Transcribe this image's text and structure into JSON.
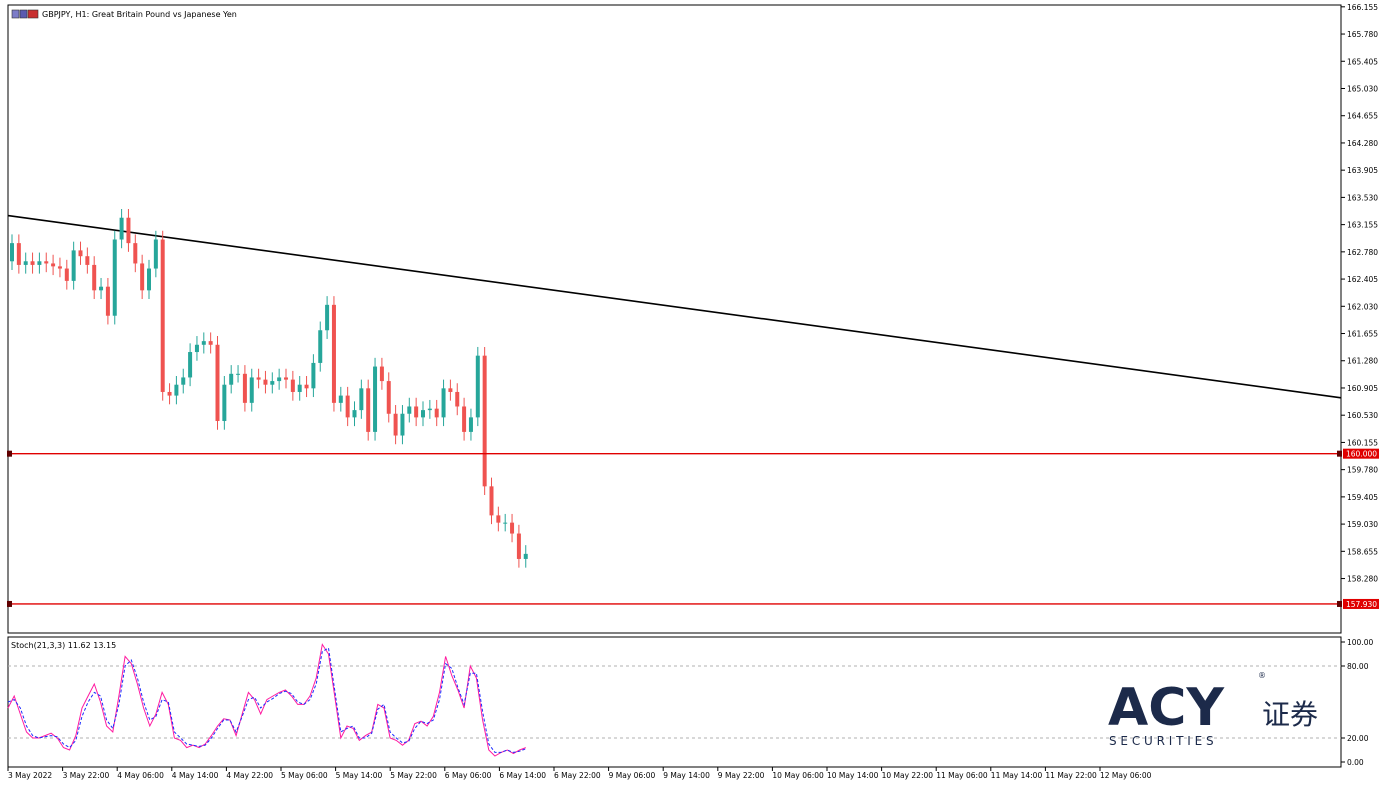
{
  "header": {
    "symbol_text": "GBPJPY, H1:  Great Britain Pound vs Japanese Yen"
  },
  "indicator": {
    "label": "Stoch(21,3,3) 11.62 13.15",
    "main_color": "#ff1aa0",
    "signal_color": "#1a2bff"
  },
  "logo": {
    "mark": "ACY",
    "chinese": "证券",
    "securities": "S E C U R I T I E S",
    "registered": "®",
    "color": "#1c2a4a"
  },
  "colors": {
    "bull": "#26a69a",
    "bear": "#ef5350",
    "trendline": "#000000",
    "hline": "#e00000",
    "hline_label_bg": "#e00000"
  },
  "chart_data": [
    {
      "type": "candlestick",
      "title": "GBPJPY, H1:  Great Britain Pound vs Japanese Yen",
      "ylim": [
        157.53,
        166.18
      ],
      "y_ticks": [
        "166.155",
        "165.780",
        "165.405",
        "165.030",
        "164.655",
        "164.280",
        "163.905",
        "163.530",
        "163.155",
        "162.780",
        "162.405",
        "162.030",
        "161.655",
        "161.280",
        "160.905",
        "160.530",
        "160.155",
        "159.780",
        "159.405",
        "159.030",
        "158.655",
        "158.280"
      ],
      "x_ticks": [
        "3 May 2022",
        "3 May 22:00",
        "4 May 06:00",
        "4 May 14:00",
        "4 May 22:00",
        "5 May 06:00",
        "5 May 14:00",
        "5 May 22:00",
        "6 May 06:00",
        "6 May 14:00",
        "6 May 22:00",
        "9 May 06:00",
        "9 May 14:00",
        "9 May 22:00",
        "10 May 06:00",
        "10 May 14:00",
        "10 May 22:00",
        "11 May 06:00",
        "11 May 14:00",
        "11 May 22:00",
        "12 May 06:00"
      ],
      "closes": [
        162.9,
        162.6,
        162.65,
        162.6,
        162.65,
        162.62,
        162.58,
        162.55,
        162.38,
        162.8,
        162.72,
        162.6,
        162.25,
        162.3,
        161.9,
        162.95,
        163.25,
        162.9,
        162.62,
        162.25,
        162.55,
        162.95,
        160.85,
        160.8,
        160.95,
        161.05,
        161.4,
        161.5,
        161.55,
        161.5,
        160.45,
        160.95,
        161.1,
        161.1,
        160.7,
        161.05,
        161.02,
        160.95,
        161.0,
        161.05,
        161.02,
        160.85,
        160.95,
        160.9,
        161.25,
        161.7,
        162.05,
        160.7,
        160.8,
        160.5,
        160.6,
        160.9,
        160.3,
        161.2,
        161.0,
        160.55,
        160.25,
        160.55,
        160.65,
        160.5,
        160.6,
        160.62,
        160.5,
        160.9,
        160.85,
        160.65,
        160.3,
        160.5,
        161.35,
        159.55,
        159.15,
        159.05,
        159.05,
        158.9,
        158.55,
        158.62
      ],
      "hlines": [
        {
          "value": 160.0,
          "label": "160.000"
        },
        {
          "value": 157.93,
          "label": "157.930"
        }
      ],
      "trendline": {
        "y_start": 163.28,
        "y_end": 160.77
      }
    },
    {
      "type": "line",
      "title": "Stoch(21,3,3) 11.62 13.15",
      "ylim": [
        0,
        100
      ],
      "y_ticks": [
        "100.00",
        "80.00",
        "20.00",
        "0.00"
      ],
      "levels": [
        80,
        20
      ],
      "main": [
        45,
        55,
        40,
        25,
        20,
        20,
        22,
        24,
        20,
        12,
        10,
        22,
        45,
        55,
        65,
        50,
        30,
        25,
        55,
        88,
        82,
        65,
        45,
        30,
        40,
        58,
        48,
        20,
        18,
        12,
        14,
        12,
        15,
        22,
        30,
        36,
        35,
        22,
        40,
        58,
        52,
        40,
        52,
        55,
        58,
        60,
        55,
        48,
        48,
        55,
        70,
        98,
        90,
        55,
        20,
        30,
        28,
        18,
        22,
        25,
        48,
        45,
        20,
        18,
        14,
        18,
        32,
        34,
        30,
        38,
        58,
        88,
        72,
        60,
        45,
        80,
        70,
        35,
        10,
        5,
        8,
        10,
        7,
        10,
        12
      ],
      "signal": [
        50,
        52,
        45,
        30,
        22,
        20,
        21,
        22,
        21,
        15,
        12,
        18,
        38,
        50,
        58,
        55,
        35,
        28,
        48,
        80,
        85,
        70,
        50,
        35,
        38,
        52,
        50,
        25,
        20,
        15,
        14,
        13,
        14,
        20,
        28,
        35,
        35,
        25,
        38,
        52,
        54,
        45,
        50,
        53,
        57,
        59,
        57,
        50,
        48,
        52,
        65,
        92,
        95,
        60,
        25,
        28,
        30,
        20,
        20,
        24,
        44,
        48,
        25,
        20,
        16,
        17,
        28,
        34,
        32,
        35,
        52,
        82,
        78,
        62,
        48,
        74,
        74,
        42,
        15,
        8,
        8,
        10,
        8,
        9,
        11
      ]
    }
  ]
}
